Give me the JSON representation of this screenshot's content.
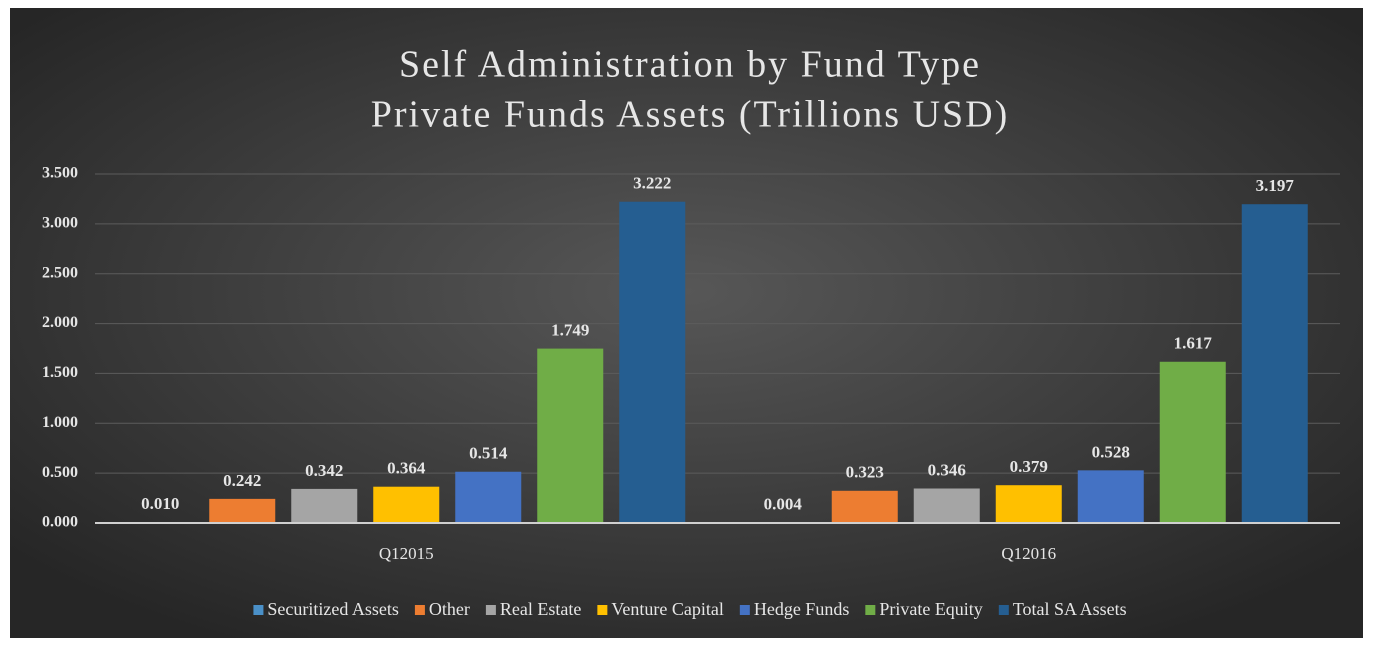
{
  "chart_data": {
    "type": "bar",
    "title": "Self Administration by Fund Type",
    "subtitle": "Private Funds Assets (Trillions USD)",
    "categories": [
      "Q12015",
      "Q12016"
    ],
    "series": [
      {
        "name": "Securitized Assets",
        "color": "#4a90c8",
        "values": [
          0.01,
          0.004
        ],
        "value_labels": [
          "0.010",
          "0.004"
        ]
      },
      {
        "name": "Other",
        "color": "#ed7d31",
        "values": [
          0.242,
          0.323
        ],
        "value_labels": [
          "0.242",
          "0.323"
        ]
      },
      {
        "name": "Real Estate",
        "color": "#a5a5a5",
        "values": [
          0.342,
          0.346
        ],
        "value_labels": [
          "0.342",
          "0.346"
        ]
      },
      {
        "name": "Venture Capital",
        "color": "#ffc000",
        "values": [
          0.364,
          0.379
        ],
        "value_labels": [
          "0.364",
          "0.379"
        ]
      },
      {
        "name": "Hedge Funds",
        "color": "#4472c4",
        "values": [
          0.514,
          0.528
        ],
        "value_labels": [
          "0.514",
          "0.528"
        ]
      },
      {
        "name": "Private Equity",
        "color": "#70ad47",
        "values": [
          1.749,
          1.617
        ],
        "value_labels": [
          "1.749",
          "1.617"
        ]
      },
      {
        "name": "Total SA Assets",
        "color": "#255e91",
        "values": [
          3.222,
          3.197
        ],
        "value_labels": [
          "3.222",
          "3.197"
        ]
      }
    ],
    "ylim": [
      0,
      3.5
    ],
    "yticks": [
      {
        "value": 0,
        "label": "0.000"
      },
      {
        "value": 0.5,
        "label": "0.500"
      },
      {
        "value": 1,
        "label": "1.000"
      },
      {
        "value": 1.5,
        "label": "1.500"
      },
      {
        "value": 2,
        "label": "2.000"
      },
      {
        "value": 2.5,
        "label": "2.500"
      },
      {
        "value": 3,
        "label": "3.000"
      },
      {
        "value": 3.5,
        "label": "3.500"
      }
    ],
    "grid": true,
    "legend": "bottom"
  }
}
